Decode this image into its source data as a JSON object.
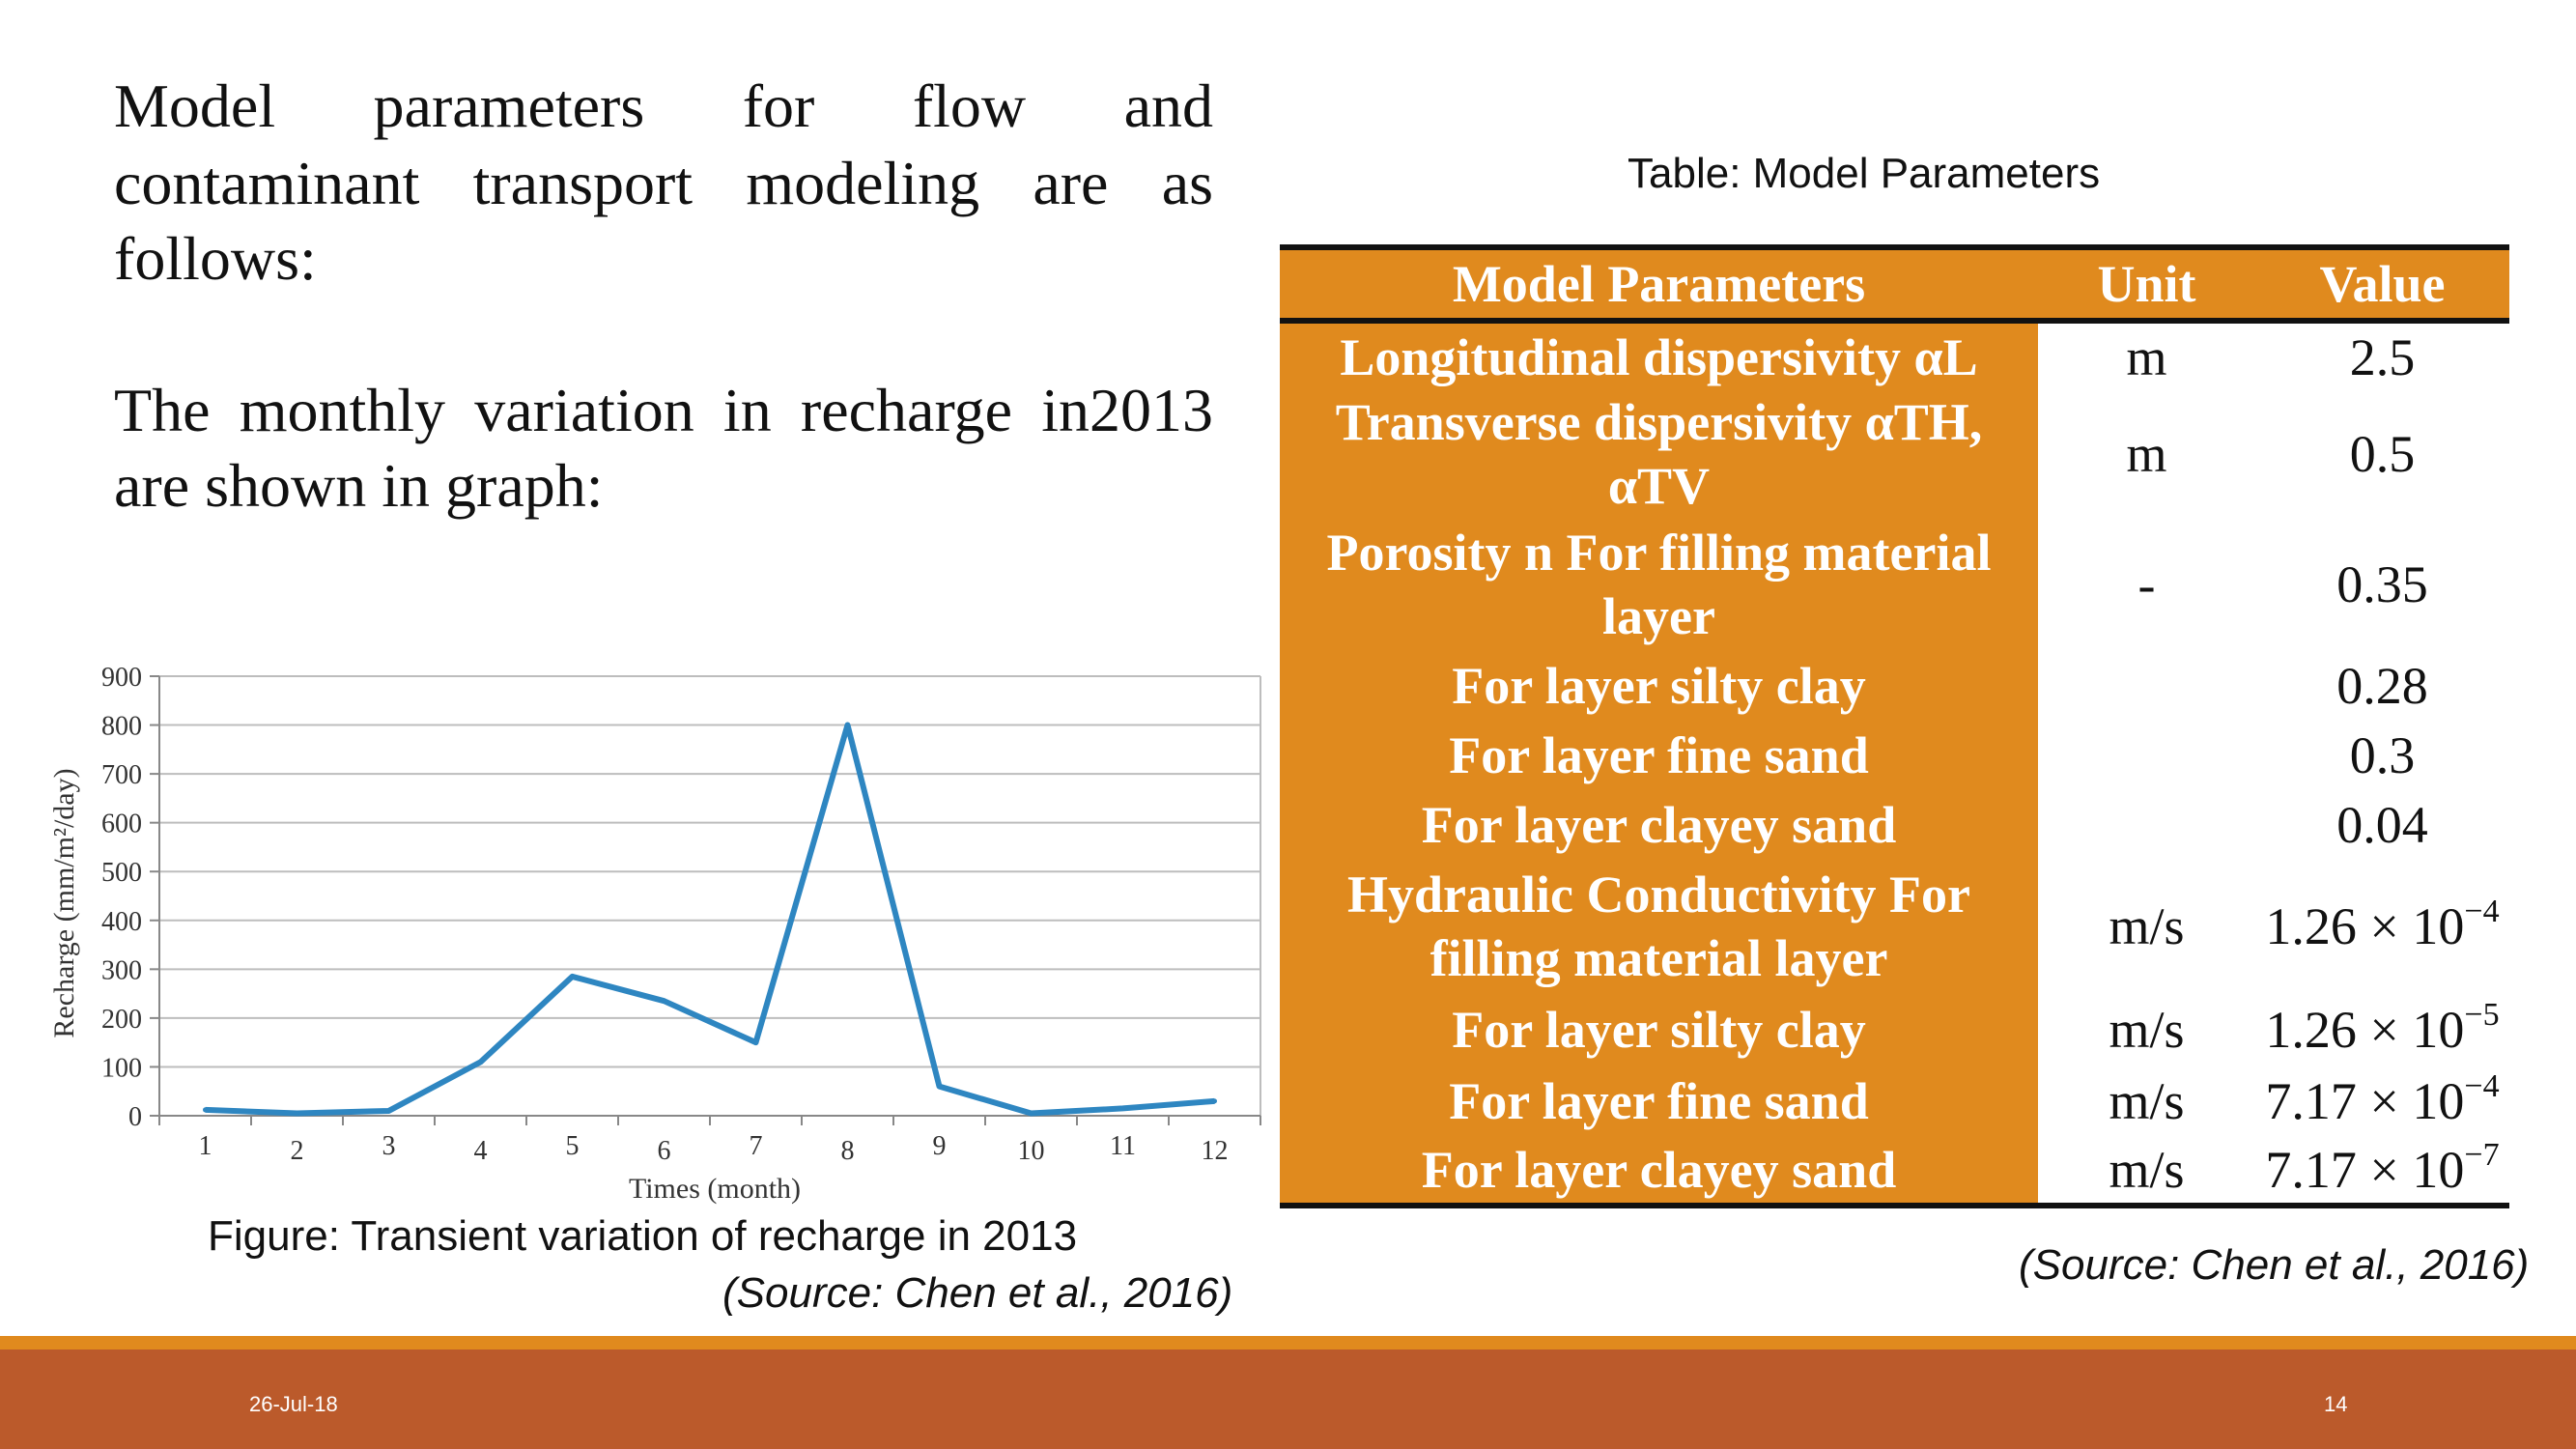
{
  "intro": {
    "line1": "Model parameters for flow and",
    "line2": "contaminant transport modeling are as",
    "line3": "follows:",
    "line4": "The monthly variation in recharge in2013",
    "line5": "are shown in graph:"
  },
  "figure": {
    "caption": "Figure: Transient variation of recharge in 2013",
    "source": "(Source: Chen et al., 2016)"
  },
  "chart_data": {
    "type": "line",
    "title": "",
    "xlabel": "Times (month)",
    "ylabel": "Recharge (mm/m²/day)",
    "x": [
      1,
      2,
      3,
      4,
      5,
      6,
      7,
      8,
      9,
      10,
      11,
      12
    ],
    "series": [
      {
        "values": [
          12,
          5,
          10,
          110,
          285,
          235,
          150,
          800,
          60,
          5,
          15,
          30
        ]
      }
    ],
    "ylim": [
      0,
      900
    ],
    "yticks": [
      0,
      100,
      200,
      300,
      400,
      500,
      600,
      700,
      800,
      900
    ],
    "xticks": [
      "1",
      "2",
      "3",
      "4",
      "5",
      "6",
      "7",
      "8",
      "9",
      "10",
      "11",
      "12"
    ],
    "grid": "horizontal",
    "line_color": "#2e86c1"
  },
  "table": {
    "title": "Table: Model Parameters",
    "source": "(Source: Chen et al., 2016)",
    "headers": [
      "Model Parameters",
      "Unit",
      "Value"
    ],
    "rows": [
      {
        "param": "Longitudinal dispersivity αL",
        "unit": "m",
        "value": "2.5"
      },
      {
        "param": "Transverse dispersivity αTH, αTV",
        "unit": "m",
        "value": "0.5"
      },
      {
        "param": "Porosity n For filling material layer",
        "unit": "-",
        "value": "0.35"
      },
      {
        "param": "For layer silty clay",
        "unit": "",
        "value": "0.28"
      },
      {
        "param": "For layer fine sand",
        "unit": "",
        "value": "0.3"
      },
      {
        "param": "For layer clayey sand",
        "unit": "",
        "value": "0.04"
      },
      {
        "param": "Hydraulic Conductivity For filling material layer",
        "unit": "m/s",
        "value_base": "1.26 × 10",
        "value_exp": "−4"
      },
      {
        "param": "For layer silty clay",
        "unit": "m/s",
        "value_base": "1.26 × 10",
        "value_exp": "−5"
      },
      {
        "param": "For layer fine sand",
        "unit": "m/s",
        "value_base": "7.17 × 10",
        "value_exp": "−4"
      },
      {
        "param": "For layer clayey sand",
        "unit": "m/s",
        "value_base": "7.17 × 10",
        "value_exp": "−7"
      }
    ]
  },
  "footer": {
    "date": "26-Jul-18",
    "page": "14",
    "color_band": "#bb5a2b",
    "color_stripe": "#e08a1e"
  }
}
